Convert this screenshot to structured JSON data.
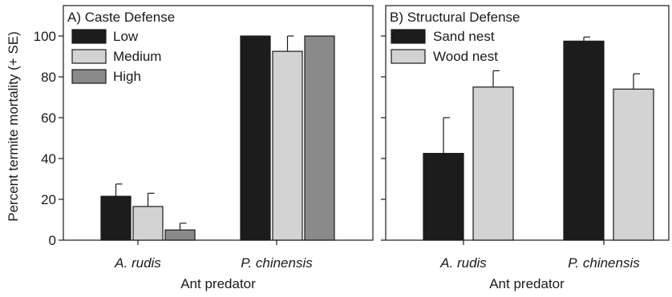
{
  "chart_data": [
    {
      "type": "bar",
      "title": "A) Caste Defense",
      "xlabel": "Ant predator",
      "ylabel": "Percent termite mortality (+ SE)",
      "ylim": [
        0,
        100
      ],
      "yticks": [
        0,
        20,
        40,
        60,
        80,
        100
      ],
      "categories": [
        "A. rudis",
        "P. chinensis"
      ],
      "legend_position": "top-left",
      "series": [
        {
          "name": "Low",
          "color": "#1c1c1c",
          "values": [
            21.5,
            100
          ],
          "errors": [
            6,
            0
          ]
        },
        {
          "name": "Medium",
          "color": "#d3d3d3",
          "values": [
            16.5,
            92.5
          ],
          "errors": [
            6.5,
            7.5
          ]
        },
        {
          "name": "High",
          "color": "#8a8a8a",
          "values": [
            5,
            100
          ],
          "errors": [
            3.3,
            0
          ]
        }
      ],
      "grid": false
    },
    {
      "type": "bar",
      "title": "B) Structural Defense",
      "xlabel": "Ant predator",
      "ylabel": "",
      "ylim": [
        0,
        100
      ],
      "yticks": [
        0,
        20,
        40,
        60,
        80,
        100
      ],
      "categories": [
        "A. rudis",
        "P. chinensis"
      ],
      "legend_position": "top-left",
      "series": [
        {
          "name": "Sand nest",
          "color": "#1c1c1c",
          "values": [
            42.5,
            97.5
          ],
          "errors": [
            17.5,
            2
          ]
        },
        {
          "name": "Wood nest",
          "color": "#d3d3d3",
          "values": [
            75,
            74
          ],
          "errors": [
            8,
            7.5
          ]
        }
      ],
      "grid": false
    }
  ]
}
